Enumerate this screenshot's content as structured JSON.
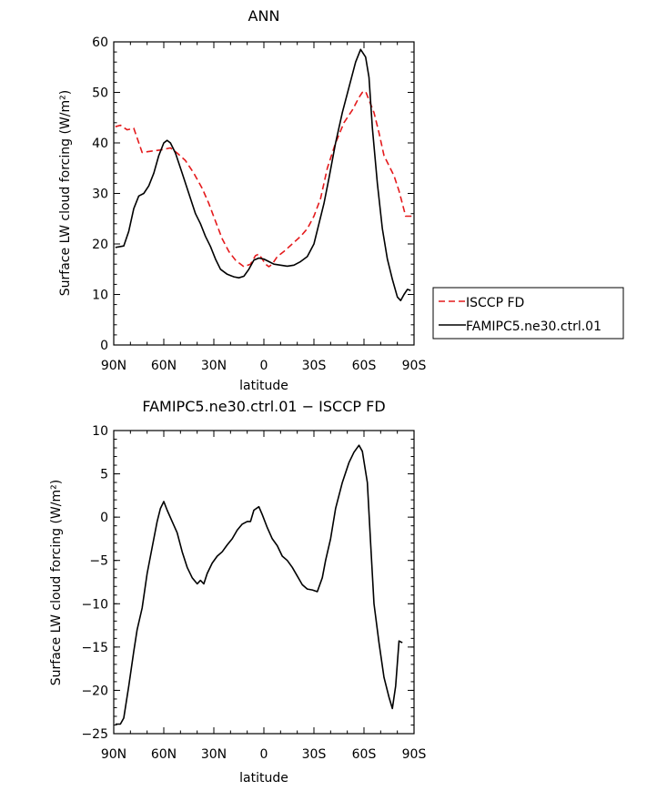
{
  "chart_data": [
    {
      "type": "line",
      "title": "ANN",
      "xlabel": "latitude",
      "ylabel": "Surface LW cloud forcing (W/m²)",
      "xlim": [
        90,
        -90
      ],
      "ylim": [
        0,
        60
      ],
      "x_ticks": [
        {
          "value": 90,
          "label": "90N"
        },
        {
          "value": 60,
          "label": "60N"
        },
        {
          "value": 30,
          "label": "30N"
        },
        {
          "value": 0,
          "label": "0"
        },
        {
          "value": -30,
          "label": "30S"
        },
        {
          "value": -60,
          "label": "60S"
        },
        {
          "value": -90,
          "label": "90S"
        }
      ],
      "y_ticks": [
        0,
        10,
        20,
        30,
        40,
        50,
        60
      ],
      "legend_position": "right",
      "series": [
        {
          "name": "ISCCP FD",
          "color": "#e41a1c",
          "dash": "dashed",
          "points": [
            [
              89,
              43.2
            ],
            [
              86,
              43.5
            ],
            [
              82,
              42.6
            ],
            [
              78,
              42.9
            ],
            [
              73,
              38.1
            ],
            [
              67,
              38.4
            ],
            [
              62,
              38.6
            ],
            [
              56,
              39.0
            ],
            [
              52,
              38.0
            ],
            [
              47,
              36.5
            ],
            [
              42,
              34.0
            ],
            [
              37,
              31.0
            ],
            [
              33,
              28.0
            ],
            [
              29,
              24.5
            ],
            [
              25,
              21.0
            ],
            [
              21,
              18.5
            ],
            [
              17,
              16.8
            ],
            [
              12,
              15.5
            ],
            [
              8,
              16.0
            ],
            [
              5,
              17.7
            ],
            [
              3,
              18.0
            ],
            [
              1,
              17.0
            ],
            [
              -1,
              16.0
            ],
            [
              -3,
              15.5
            ],
            [
              -5,
              16.0
            ],
            [
              -8,
              17.5
            ],
            [
              -12,
              18.5
            ],
            [
              -17,
              20.0
            ],
            [
              -22,
              21.5
            ],
            [
              -26,
              23.0
            ],
            [
              -30,
              25.5
            ],
            [
              -34,
              29.0
            ],
            [
              -38,
              35.0
            ],
            [
              -43,
              40.0
            ],
            [
              -48,
              44.0
            ],
            [
              -53,
              46.5
            ],
            [
              -57,
              49.0
            ],
            [
              -59,
              50.0
            ],
            [
              -61,
              50.2
            ],
            [
              -63,
              48.5
            ],
            [
              -66,
              46.0
            ],
            [
              -69,
              42.0
            ],
            [
              -72,
              37.5
            ],
            [
              -75,
              35.5
            ],
            [
              -78,
              33.5
            ],
            [
              -81,
              30.5
            ],
            [
              -85,
              25.5
            ],
            [
              -89,
              25.5
            ]
          ]
        },
        {
          "name": "FAMIPC5.ne30.ctrl.01",
          "color": "#000000",
          "dash": "solid",
          "points": [
            [
              89,
              19.3
            ],
            [
              84,
              19.6
            ],
            [
              81,
              22.5
            ],
            [
              78,
              27.0
            ],
            [
              75,
              29.5
            ],
            [
              72,
              30.0
            ],
            [
              69,
              31.5
            ],
            [
              66,
              34.0
            ],
            [
              63,
              37.5
            ],
            [
              60,
              40.0
            ],
            [
              58,
              40.5
            ],
            [
              56,
              40.0
            ],
            [
              53,
              38.0
            ],
            [
              49,
              34.0
            ],
            [
              45,
              30.0
            ],
            [
              41,
              26.0
            ],
            [
              38,
              24.0
            ],
            [
              35,
              21.5
            ],
            [
              32,
              19.5
            ],
            [
              29,
              17.0
            ],
            [
              26,
              15.0
            ],
            [
              22,
              14.0
            ],
            [
              18,
              13.5
            ],
            [
              15,
              13.3
            ],
            [
              12,
              13.6
            ],
            [
              9,
              15.0
            ],
            [
              6,
              16.8
            ],
            [
              3,
              17.2
            ],
            [
              0,
              17.0
            ],
            [
              -3,
              16.5
            ],
            [
              -6,
              16.0
            ],
            [
              -10,
              15.8
            ],
            [
              -14,
              15.6
            ],
            [
              -18,
              15.8
            ],
            [
              -22,
              16.5
            ],
            [
              -26,
              17.5
            ],
            [
              -30,
              20.0
            ],
            [
              -33,
              24.0
            ],
            [
              -36,
              28.0
            ],
            [
              -39,
              33.0
            ],
            [
              -43,
              40.0
            ],
            [
              -47,
              46.0
            ],
            [
              -51,
              51.0
            ],
            [
              -55,
              56.0
            ],
            [
              -58,
              58.5
            ],
            [
              -61,
              57.0
            ],
            [
              -63,
              53.0
            ],
            [
              -65,
              43.0
            ],
            [
              -68,
              32.0
            ],
            [
              -71,
              23.0
            ],
            [
              -74,
              17.0
            ],
            [
              -77,
              13.0
            ],
            [
              -80,
              9.5
            ],
            [
              -82,
              8.8
            ],
            [
              -84,
              10.0
            ],
            [
              -86,
              11.0
            ],
            [
              -88,
              10.8
            ]
          ]
        }
      ]
    },
    {
      "type": "line",
      "title": "FAMIPC5.ne30.ctrl.01 − ISCCP FD",
      "xlabel": "latitude",
      "ylabel": "Surface LW cloud forcing (W/m²)",
      "xlim": [
        90,
        -90
      ],
      "ylim": [
        -25,
        10
      ],
      "x_ticks": [
        {
          "value": 90,
          "label": "90N"
        },
        {
          "value": 60,
          "label": "60N"
        },
        {
          "value": 30,
          "label": "30N"
        },
        {
          "value": 0,
          "label": "0"
        },
        {
          "value": -30,
          "label": "30S"
        },
        {
          "value": -60,
          "label": "60S"
        },
        {
          "value": -90,
          "label": "90S"
        }
      ],
      "y_ticks": [
        10,
        5,
        0,
        -5,
        -10,
        -15,
        -20,
        -25
      ],
      "series": [
        {
          "name": "",
          "color": "#000000",
          "dash": "solid",
          "points": [
            [
              89,
              -23.9
            ],
            [
              86,
              -23.9
            ],
            [
              84,
              -23.2
            ],
            [
              81,
              -19.5
            ],
            [
              78,
              -15.5
            ],
            [
              76,
              -13.0
            ],
            [
              73,
              -10.5
            ],
            [
              70,
              -6.5
            ],
            [
              67,
              -3.5
            ],
            [
              64,
              -0.5
            ],
            [
              62,
              1.0
            ],
            [
              60,
              1.8
            ],
            [
              58,
              0.8
            ],
            [
              55,
              -0.5
            ],
            [
              52,
              -1.8
            ],
            [
              49,
              -4.0
            ],
            [
              46,
              -5.8
            ],
            [
              43,
              -7.0
            ],
            [
              40,
              -7.7
            ],
            [
              38,
              -7.3
            ],
            [
              36,
              -7.7
            ],
            [
              34,
              -6.5
            ],
            [
              31,
              -5.3
            ],
            [
              28,
              -4.5
            ],
            [
              25,
              -4.0
            ],
            [
              22,
              -3.2
            ],
            [
              19,
              -2.5
            ],
            [
              16,
              -1.5
            ],
            [
              13,
              -0.8
            ],
            [
              10,
              -0.5
            ],
            [
              8,
              -0.5
            ],
            [
              6,
              0.8
            ],
            [
              3,
              1.2
            ],
            [
              1,
              0.3
            ],
            [
              -2,
              -1.2
            ],
            [
              -5,
              -2.5
            ],
            [
              -8,
              -3.3
            ],
            [
              -11,
              -4.5
            ],
            [
              -14,
              -5.0
            ],
            [
              -17,
              -5.8
            ],
            [
              -20,
              -6.8
            ],
            [
              -23,
              -7.8
            ],
            [
              -26,
              -8.3
            ],
            [
              -29,
              -8.4
            ],
            [
              -32,
              -8.6
            ],
            [
              -35,
              -7.0
            ],
            [
              -37,
              -5.0
            ],
            [
              -40,
              -2.5
            ],
            [
              -43,
              1.0
            ],
            [
              -47,
              4.0
            ],
            [
              -51,
              6.3
            ],
            [
              -54,
              7.5
            ],
            [
              -57,
              8.3
            ],
            [
              -59,
              7.6
            ],
            [
              -62,
              4.0
            ],
            [
              -64,
              -3.0
            ],
            [
              -66,
              -10.0
            ],
            [
              -69,
              -14.5
            ],
            [
              -72,
              -18.5
            ],
            [
              -75,
              -20.8
            ],
            [
              -77,
              -22.1
            ],
            [
              -79,
              -19.5
            ],
            [
              -81,
              -14.3
            ],
            [
              -83,
              -14.5
            ]
          ]
        }
      ]
    }
  ]
}
